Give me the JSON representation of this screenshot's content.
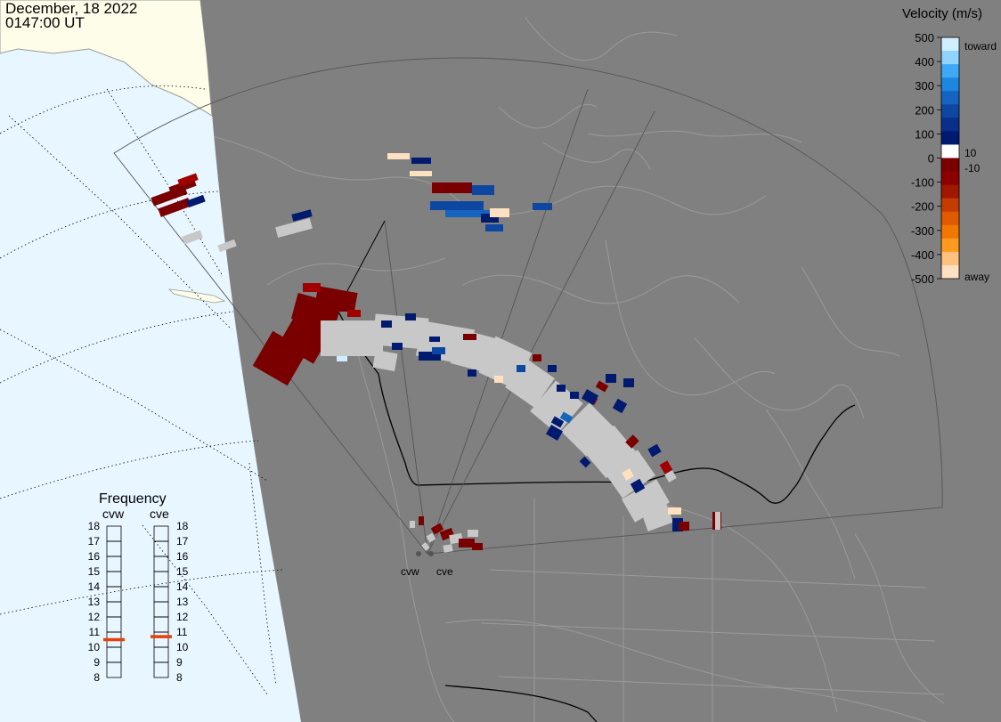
{
  "header": {
    "date": "December, 18 2022",
    "time": "0147:00 UT"
  },
  "colors": {
    "ocean_daylight": "#e8f6ff",
    "land_daylight": "#fdfde9",
    "night_shade": "#808080",
    "coastline": "#9a9a9a",
    "border": "#000000",
    "ground_scatter": "#c8c8c8"
  },
  "velocity_scale": {
    "title": "Velocity (m/s)",
    "ticks": [
      "500",
      "400",
      "300",
      "200",
      "100",
      "0",
      "-100",
      "-200",
      "-300",
      "-400",
      "-500"
    ],
    "side_labels": {
      "top": "toward",
      "pos_small": "10",
      "neg_small": "-10",
      "bottom": "away"
    },
    "colors_top_to_bottom": [
      "#cfeeff",
      "#8fd3ff",
      "#3fa9f5",
      "#1f86e0",
      "#1565c0",
      "#0d47a1",
      "#0a2f8a",
      "#001a70",
      "#ffffff",
      "#7a0000",
      "#8b0000",
      "#a01800",
      "#c43c00",
      "#e05a00",
      "#f07800",
      "#ff9a20",
      "#ffc080",
      "#ffe0c0"
    ]
  },
  "frequency": {
    "title": "Frequency",
    "radars": [
      "cvw",
      "cve"
    ],
    "levels": [
      "18",
      "17",
      "16",
      "15",
      "14",
      "13",
      "12",
      "11",
      "10",
      "9",
      "8"
    ],
    "cvw_mhz": 10.5,
    "cve_mhz": 10.7
  },
  "radar_sites": {
    "west_label": "cvw",
    "east_label": "cve"
  }
}
